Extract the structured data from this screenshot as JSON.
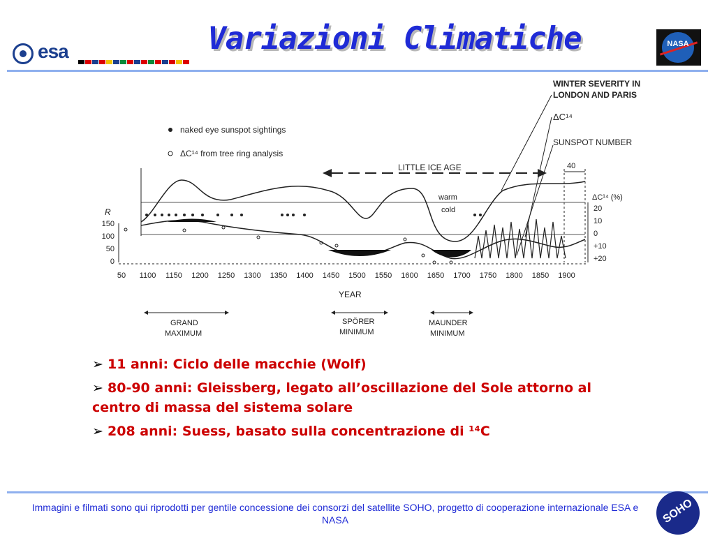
{
  "header": {
    "title": "Variazioni Climatiche",
    "esa_logo_text": "esa",
    "nasa_logo_text": "NASA",
    "accent_color": "#8fb0ee",
    "title_color": "#1f2bd6"
  },
  "figure": {
    "y_left_label": "R",
    "y_left_ticks": [
      "150",
      "100",
      "50",
      "0"
    ],
    "y_right_label": "ΔC¹⁴ (%)",
    "y_right_ticks": [
      "20",
      "10",
      "0",
      "+10",
      "+20"
    ],
    "x_ticks": [
      "50",
      "1100",
      "1150",
      "1200",
      "1250",
      "1300",
      "1350",
      "1400",
      "1450",
      "1500",
      "1550",
      "1600",
      "1650",
      "1700",
      "1750",
      "1800",
      "1850",
      "1900"
    ],
    "x_axis_label": "YEAR",
    "legend_dot": "naked eye sunspot sightings",
    "legend_circle": "ΔC¹⁴ from tree ring analysis",
    "annotation_little_ice_age": "LITTLE ICE AGE",
    "annotation_winter_line1": "WINTER SEVERITY IN",
    "annotation_winter_line2": "LONDON AND PARIS",
    "annotation_c14": "ΔC¹⁴",
    "annotation_sunspot": "SUNSPOT NUMBER",
    "annotation_40": "40",
    "annotation_warm": "warm",
    "annotation_cold": "cold",
    "period_grand_line1": "GRAND",
    "period_grand_line2": "MAXIMUM",
    "period_sporer_line1": "SPÖRER",
    "period_sporer_line2": "MINIMUM",
    "period_maunder_line1": "MAUNDER",
    "period_maunder_line2": "MINIMUM"
  },
  "bullets": [
    {
      "text": "11 anni: Ciclo delle macchie  (Wolf)"
    },
    {
      "text": "80-90 anni: Gleissberg, legato all’oscillazione del Sole attorno al centro di massa del sistema solare"
    },
    {
      "text": "208 anni: Suess, basato sulla concentrazione di ¹⁴C"
    }
  ],
  "bullet_marker": "➢",
  "footer": {
    "text": "Immagini e filmati sono qui riprodotti per gentile concessione dei consorzi del satellite SOHO, progetto di cooperazione internazionale  ESA e NASA",
    "soho_logo_text": "SOHO"
  }
}
